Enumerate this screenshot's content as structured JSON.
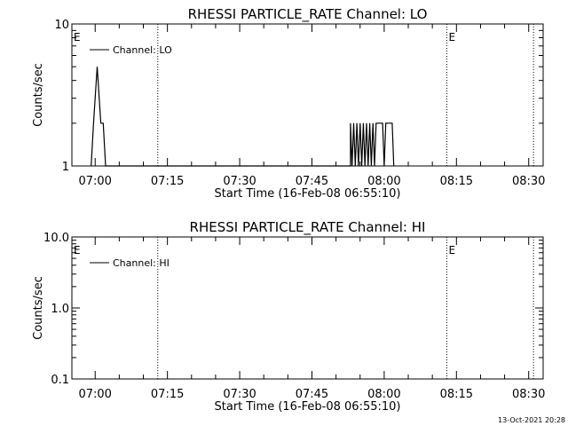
{
  "footer_timestamp": "13-Oct-2021 20:28",
  "chart_data": [
    {
      "type": "line",
      "title": "RHESSI PARTICLE_RATE Channel: LO",
      "xlabel": "Start Time (16-Feb-08 06:55:10)",
      "ylabel": "Counts/sec",
      "y_scale": "log",
      "ylim": [
        1,
        10
      ],
      "y_ticks": [
        1,
        10
      ],
      "y_tick_labels": [
        "1",
        "10"
      ],
      "xlim": [
        "06:55:10",
        "08:33:00"
      ],
      "x_ticks": [
        "07:00",
        "07:15",
        "07:30",
        "07:45",
        "08:00",
        "08:15",
        "08:30"
      ],
      "legend": {
        "position": "top-left",
        "entries": [
          "Channel: LO"
        ]
      },
      "markers": [
        {
          "label": "E",
          "x": "06:55:10"
        },
        {
          "label": "",
          "x": "07:13:00"
        },
        {
          "label": "E",
          "x": "08:13:00"
        },
        {
          "label": "",
          "x": "08:31:00"
        }
      ],
      "series": [
        {
          "name": "Channel: LO",
          "points": [
            [
              "06:59:10",
              1
            ],
            [
              "06:59:40",
              2
            ],
            [
              "07:00:00",
              3
            ],
            [
              "07:00:25",
              5
            ],
            [
              "07:00:50",
              3
            ],
            [
              "07:01:10",
              2
            ],
            [
              "07:01:40",
              2
            ],
            [
              "07:02:10",
              1
            ],
            [
              "07:53:00",
              1
            ],
            [
              "07:53:00",
              2
            ],
            [
              "07:53:20",
              1
            ],
            [
              "07:53:40",
              2
            ],
            [
              "07:54:00",
              1
            ],
            [
              "07:54:20",
              2
            ],
            [
              "07:54:40",
              1
            ],
            [
              "07:55:00",
              2
            ],
            [
              "07:55:20",
              1
            ],
            [
              "07:55:40",
              2
            ],
            [
              "07:56:00",
              1
            ],
            [
              "07:56:20",
              2
            ],
            [
              "07:56:40",
              1
            ],
            [
              "07:57:00",
              2
            ],
            [
              "07:57:20",
              1
            ],
            [
              "07:57:40",
              2
            ],
            [
              "07:58:00",
              1
            ],
            [
              "07:58:20",
              2
            ],
            [
              "07:59:40",
              2
            ],
            [
              "08:00:00",
              1
            ],
            [
              "08:00:20",
              2
            ],
            [
              "08:01:40",
              2
            ],
            [
              "08:02:00",
              1
            ]
          ]
        }
      ]
    },
    {
      "type": "line",
      "title": "RHESSI PARTICLE_RATE Channel: HI",
      "xlabel": "Start Time (16-Feb-08 06:55:10)",
      "ylabel": "Counts/sec",
      "y_scale": "log",
      "ylim": [
        0.1,
        10
      ],
      "y_ticks": [
        0.1,
        1.0,
        10.0
      ],
      "y_tick_labels": [
        "0.1",
        "1.0",
        "10.0"
      ],
      "xlim": [
        "06:55:10",
        "08:33:00"
      ],
      "x_ticks": [
        "07:00",
        "07:15",
        "07:30",
        "07:45",
        "08:00",
        "08:15",
        "08:30"
      ],
      "legend": {
        "position": "top-left",
        "entries": [
          "Channel: HI"
        ]
      },
      "markers": [
        {
          "label": "E",
          "x": "06:55:10"
        },
        {
          "label": "",
          "x": "07:13:00"
        },
        {
          "label": "E",
          "x": "08:13:00"
        },
        {
          "label": "",
          "x": "08:31:00"
        }
      ],
      "series": [
        {
          "name": "Channel: HI",
          "points": []
        }
      ]
    }
  ]
}
